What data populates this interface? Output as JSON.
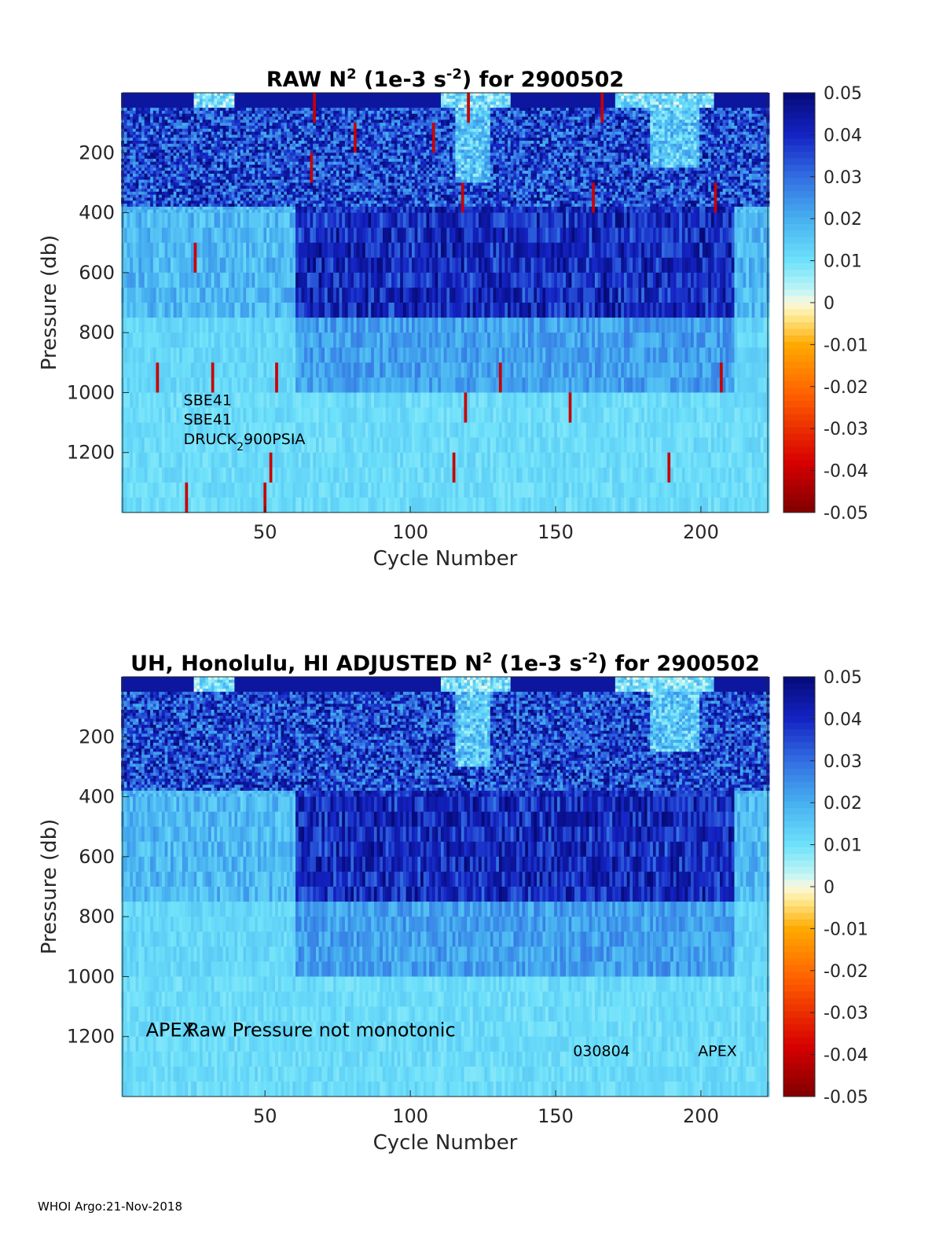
{
  "footer": "WHOI Argo:21-Nov-2018",
  "chart_data": [
    {
      "type": "heatmap",
      "title": {
        "prefix": "RAW N",
        "sup1": "2",
        "mid": " (1e-3 s",
        "sup2": "-2",
        "suffix": ") for 2900502"
      },
      "xlabel": "Cycle Number",
      "ylabel": "Pressure (db)",
      "xlim": [
        1,
        223
      ],
      "ylim": [
        1400,
        0
      ],
      "xticks": [
        50,
        100,
        150,
        200
      ],
      "yticks": [
        200,
        400,
        600,
        800,
        1000,
        1200
      ],
      "colorbar": {
        "min": -0.05,
        "max": 0.05,
        "ticks": [
          0.05,
          0.04,
          0.03,
          0.02,
          0.01,
          0,
          -0.01,
          -0.02,
          -0.03,
          -0.04,
          -0.05
        ]
      },
      "annotations": [
        {
          "text": "SBE41",
          "x": 22,
          "y": 1042
        },
        {
          "text": "SBE41",
          "x": 22,
          "y": 1107
        },
        {
          "text": "DRUCK",
          "sub": "2",
          "tail": "900PSIA",
          "x": 22,
          "y": 1172
        }
      ]
    },
    {
      "type": "heatmap",
      "title": {
        "prefix": "UH, Honolulu, HI  ADJUSTED N",
        "sup1": "2",
        "mid": " (1e-3 s",
        "sup2": "-2",
        "suffix": ") for 2900502"
      },
      "xlabel": "Cycle Number",
      "ylabel": "Pressure (db)",
      "xlim": [
        1,
        223
      ],
      "ylim": [
        1400,
        0
      ],
      "xticks": [
        50,
        100,
        150,
        200
      ],
      "yticks": [
        200,
        400,
        600,
        800,
        1000,
        1200
      ],
      "colorbar": {
        "min": -0.05,
        "max": 0.05,
        "ticks": [
          0.05,
          0.04,
          0.03,
          0.02,
          0.01,
          0,
          -0.01,
          -0.02,
          -0.03,
          -0.04,
          -0.05
        ]
      },
      "annotations": [
        {
          "text": "APEX",
          "x": 9,
          "y": 1200
        },
        {
          "text": "Raw Pressure not monotonic",
          "x": 23,
          "y": 1200
        },
        {
          "text": "030804",
          "x": 156,
          "y": 1265
        },
        {
          "text": "APEX",
          "x": 199,
          "y": 1265
        }
      ]
    }
  ]
}
